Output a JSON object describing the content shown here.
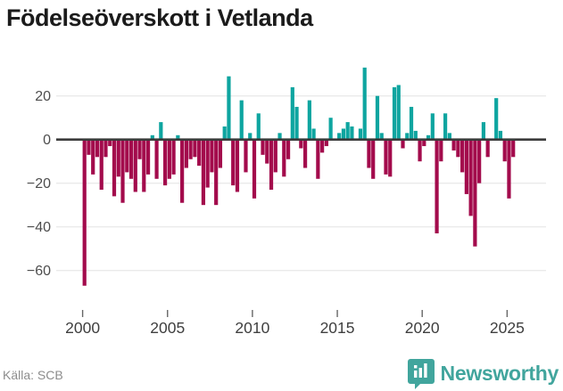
{
  "title": "Födelseöverskott i Vetlanda",
  "footer": {
    "source_label": "Källa: SCB",
    "brand_name": "Newsworthy"
  },
  "colors": {
    "positive_bar": "#0EA5A0",
    "negative_bar": "#A30B4C",
    "zero_line": "#3b3b3b",
    "gridline": "#eaeaea",
    "axis_text": "#4d4d4d",
    "title_text": "#1b1b1b",
    "brand_teal": "#41a59d",
    "source_text": "#8c8c8c"
  },
  "chart_data": {
    "type": "bar",
    "title": "Födelseöverskott i Vetlanda",
    "xlabel": "",
    "ylabel": "",
    "frequency": "quarterly",
    "start": {
      "year": 2000,
      "quarter": 1
    },
    "end": {
      "year": 2025,
      "quarter": 2
    },
    "x_tick_labels": [
      "2000",
      "2005",
      "2010",
      "2015",
      "2020",
      "2025"
    ],
    "y_tick_values": [
      20,
      0,
      -20,
      -40,
      -60
    ],
    "ylim": [
      -75,
      35
    ],
    "grid": true,
    "legend": "none",
    "series_note": "positive quarters teal, negative quarters dark red",
    "years": [
      {
        "year": 2000,
        "q": [
          -67,
          -7,
          -16,
          -8
        ]
      },
      {
        "year": 2001,
        "q": [
          -23,
          -8,
          -3,
          -26
        ]
      },
      {
        "year": 2002,
        "q": [
          -17,
          -29,
          -15,
          -18
        ]
      },
      {
        "year": 2003,
        "q": [
          -24,
          -9,
          -24,
          -16
        ]
      },
      {
        "year": 2004,
        "q": [
          2,
          -18,
          8,
          -21
        ]
      },
      {
        "year": 2005,
        "q": [
          -18,
          -16,
          2,
          -29
        ]
      },
      {
        "year": 2006,
        "q": [
          -13,
          -9,
          -8,
          -12
        ]
      },
      {
        "year": 2007,
        "q": [
          -30,
          -22,
          -15,
          -30
        ]
      },
      {
        "year": 2008,
        "q": [
          -13,
          6,
          29,
          -21
        ]
      },
      {
        "year": 2009,
        "q": [
          -24,
          18,
          -15,
          3
        ]
      },
      {
        "year": 2010,
        "q": [
          -27,
          12,
          -7,
          -11
        ]
      },
      {
        "year": 2011,
        "q": [
          -23,
          -15,
          3,
          -17
        ]
      },
      {
        "year": 2012,
        "q": [
          -9,
          24,
          15,
          -4
        ]
      },
      {
        "year": 2013,
        "q": [
          -13,
          18,
          5,
          -18
        ]
      },
      {
        "year": 2014,
        "q": [
          -6,
          -3,
          10,
          0
        ]
      },
      {
        "year": 2015,
        "q": [
          3,
          5,
          8,
          6
        ]
      },
      {
        "year": 2016,
        "q": [
          0,
          5,
          33,
          -13
        ]
      },
      {
        "year": 2017,
        "q": [
          -18,
          20,
          3,
          -16
        ]
      },
      {
        "year": 2018,
        "q": [
          -17,
          24,
          25,
          -4
        ]
      },
      {
        "year": 2019,
        "q": [
          3,
          15,
          4,
          -10
        ]
      },
      {
        "year": 2020,
        "q": [
          -3,
          2,
          12,
          -43
        ]
      },
      {
        "year": 2021,
        "q": [
          -10,
          12,
          3,
          -5
        ]
      },
      {
        "year": 2022,
        "q": [
          -8,
          -15,
          -25,
          -35
        ]
      },
      {
        "year": 2023,
        "q": [
          -49,
          -20,
          8,
          -8
        ]
      },
      {
        "year": 2024,
        "q": [
          0,
          19,
          4,
          -10
        ]
      },
      {
        "year": 2025,
        "q": [
          -27,
          -8
        ]
      }
    ],
    "source": "Källa: SCB"
  }
}
